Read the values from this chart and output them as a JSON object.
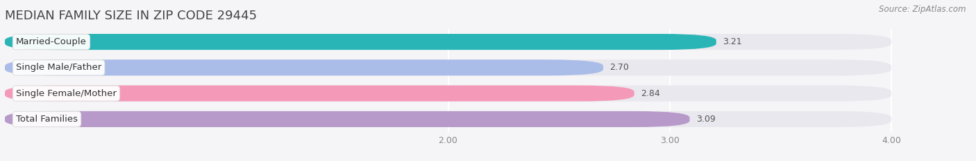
{
  "title": "MEDIAN FAMILY SIZE IN ZIP CODE 29445",
  "source_text": "Source: ZipAtlas.com",
  "categories": [
    "Married-Couple",
    "Single Male/Father",
    "Single Female/Mother",
    "Total Families"
  ],
  "values": [
    3.21,
    2.7,
    2.84,
    3.09
  ],
  "bar_colors": [
    "#29b5b5",
    "#aabde8",
    "#f49ab8",
    "#b89aca"
  ],
  "track_color": "#e8e8ee",
  "xlim_left": 0.0,
  "xlim_right": 4.0,
  "xaxis_min": 2.0,
  "xaxis_max": 4.0,
  "xticks": [
    2.0,
    3.0,
    4.0
  ],
  "xtick_labels": [
    "2.00",
    "3.00",
    "4.00"
  ],
  "bar_height": 0.62,
  "background_color": "#f5f5f7",
  "plot_bg_color": "#f5f5f7",
  "title_fontsize": 13,
  "label_fontsize": 9.5,
  "value_fontsize": 9
}
